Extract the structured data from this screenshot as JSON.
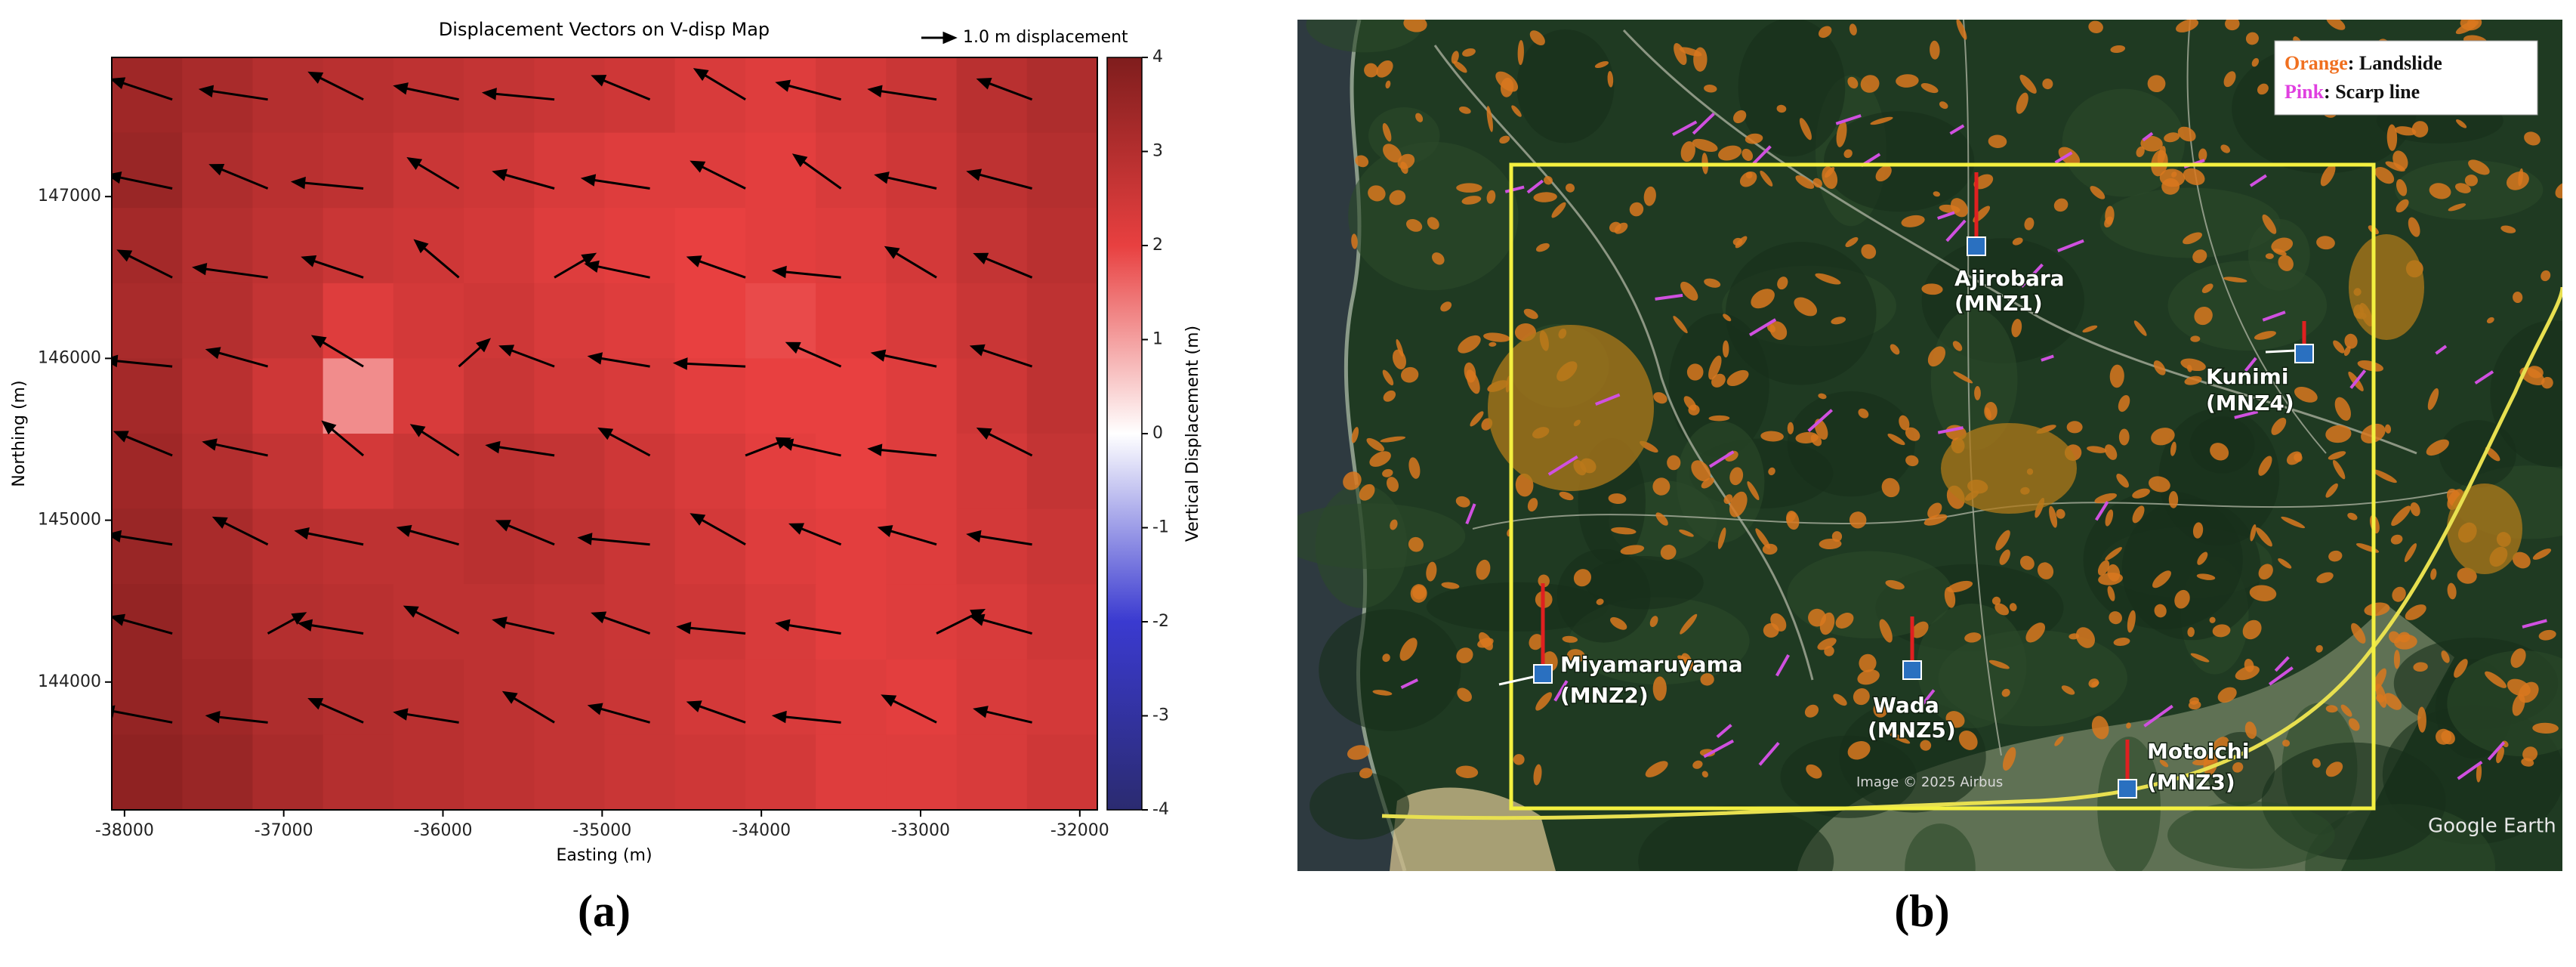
{
  "chart_data": {
    "type": "heatmap",
    "title": "Displacement Vectors on V-disp Map",
    "xlabel": "Easting (m)",
    "ylabel": "Northing (m)",
    "xlim": [
      -38080,
      -31890
    ],
    "ylim": [
      143210,
      147860
    ],
    "xticks": [
      -38000,
      -37000,
      -36000,
      -35000,
      -34000,
      -33000,
      -32000
    ],
    "yticks": [
      144000,
      145000,
      146000,
      147000
    ],
    "colormap": [
      "#2b2b70",
      "#3a3ad0",
      "#ffffff",
      "#e84040",
      "#7f1d1d"
    ],
    "colorbar": {
      "label": "Vertical Displacement (m)",
      "lim": [
        -4,
        4
      ],
      "ticks": [
        -4,
        -3,
        -2,
        -1,
        0,
        1,
        2,
        3,
        4
      ]
    },
    "z": [
      [
        3.4,
        3.2,
        3.0,
        2.9,
        2.8,
        2.7,
        2.6,
        2.5,
        2.3,
        2.2,
        2.4,
        2.6,
        2.9,
        3.1
      ],
      [
        3.5,
        3.1,
        2.9,
        2.8,
        2.6,
        2.5,
        2.3,
        2.2,
        2.2,
        2.1,
        2.3,
        2.5,
        2.8,
        3.0
      ],
      [
        3.3,
        3.0,
        2.8,
        2.6,
        2.5,
        2.4,
        2.2,
        2.1,
        2.0,
        2.1,
        2.2,
        2.4,
        2.7,
        2.9
      ],
      [
        3.2,
        3.0,
        2.7,
        2.2,
        2.4,
        2.5,
        2.3,
        2.2,
        2.0,
        1.9,
        2.1,
        2.3,
        2.6,
        2.8
      ],
      [
        3.3,
        2.9,
        2.5,
        1.2,
        2.3,
        2.6,
        2.4,
        2.3,
        2.1,
        2.0,
        2.0,
        2.2,
        2.5,
        2.8
      ],
      [
        3.4,
        3.0,
        2.7,
        2.4,
        2.6,
        2.8,
        2.7,
        2.5,
        2.3,
        2.1,
        2.0,
        2.2,
        2.4,
        2.7
      ],
      [
        3.5,
        3.2,
        2.9,
        2.8,
        2.8,
        2.9,
        2.8,
        2.6,
        2.4,
        2.2,
        2.1,
        2.2,
        2.4,
        2.6
      ],
      [
        3.6,
        3.3,
        3.0,
        2.9,
        2.8,
        2.8,
        2.7,
        2.6,
        2.5,
        2.3,
        2.1,
        2.2,
        2.3,
        2.5
      ],
      [
        3.6,
        3.4,
        3.1,
        3.0,
        2.9,
        2.8,
        2.7,
        2.6,
        2.4,
        2.3,
        2.2,
        2.1,
        2.3,
        2.4
      ],
      [
        3.7,
        3.5,
        3.2,
        3.0,
        2.9,
        2.8,
        2.7,
        2.6,
        2.5,
        2.4,
        2.2,
        2.2,
        2.3,
        2.5
      ]
    ],
    "quiver": {
      "key_label": "1.0 m displacement",
      "key_value": 1.0,
      "x": [
        -37700,
        -37100,
        -36500,
        -35900,
        -35300,
        -34700,
        -34100,
        -33500,
        -32900,
        -32300
      ],
      "y": [
        147600,
        147050,
        146500,
        145950,
        145400,
        144850,
        144300,
        143750
      ],
      "u": [
        [
          -1.8,
          -2.0,
          -1.6,
          -1.9,
          -2.1,
          -1.7,
          -1.5,
          -1.9,
          -2.0,
          -1.6
        ],
        [
          -1.9,
          -1.7,
          -2.1,
          -1.5,
          -1.8,
          -2.0,
          -1.6,
          -1.4,
          -1.8,
          -1.9
        ],
        [
          -1.6,
          -2.2,
          -1.8,
          -1.3,
          1.2,
          -1.9,
          -1.7,
          -2.0,
          -1.5,
          -1.7
        ],
        [
          -2.0,
          -1.8,
          -1.5,
          0.9,
          -1.6,
          -1.8,
          -2.1,
          -1.6,
          -1.9,
          -1.8
        ],
        [
          -1.7,
          -1.9,
          -1.2,
          -1.4,
          -2.0,
          -1.5,
          1.3,
          -1.8,
          -2.0,
          -1.6
        ],
        [
          -1.9,
          -1.6,
          -2.0,
          -1.8,
          -1.7,
          -2.1,
          -1.6,
          -1.5,
          -1.7,
          -1.9
        ],
        [
          -1.8,
          1.1,
          -1.9,
          -1.6,
          -1.8,
          -1.7,
          -2.0,
          -1.9,
          1.4,
          -1.8
        ],
        [
          -2.1,
          -1.8,
          -1.6,
          -1.9,
          -1.5,
          -1.8,
          -1.7,
          -2.0,
          -1.6,
          -1.7
        ]
      ],
      "v": [
        [
          0.6,
          0.3,
          0.8,
          0.4,
          0.2,
          0.7,
          0.9,
          0.5,
          0.3,
          0.6
        ],
        [
          0.4,
          0.7,
          0.2,
          0.9,
          0.5,
          0.3,
          0.8,
          1.0,
          0.4,
          0.5
        ],
        [
          0.8,
          0.3,
          0.6,
          1.1,
          0.7,
          0.4,
          0.6,
          0.2,
          0.9,
          0.7
        ],
        [
          0.2,
          0.5,
          0.9,
          0.8,
          0.6,
          0.3,
          0.1,
          0.7,
          0.4,
          0.6
        ],
        [
          0.7,
          0.4,
          1.0,
          0.9,
          0.3,
          0.8,
          0.5,
          0.4,
          0.2,
          0.8
        ],
        [
          0.3,
          0.8,
          0.4,
          0.5,
          0.7,
          0.2,
          0.9,
          0.6,
          0.5,
          0.3
        ],
        [
          0.5,
          0.6,
          0.3,
          0.8,
          0.4,
          0.6,
          0.2,
          0.3,
          0.7,
          0.5
        ],
        [
          0.4,
          0.2,
          0.7,
          0.3,
          0.9,
          0.5,
          0.6,
          0.2,
          0.8,
          0.4
        ]
      ]
    }
  },
  "panel_labels": [
    "(a)",
    "(b)"
  ],
  "map": {
    "legend": [
      {
        "key": "Orange",
        "text": ": Landslide",
        "color": "#f07020"
      },
      {
        "key": "Pink",
        "text": ": Scarp line",
        "color": "#e040e0"
      }
    ],
    "stations": [
      {
        "name": "Ajirobara",
        "code": "(MNZ1)"
      },
      {
        "name": "Miyamaruyama",
        "code": "(MNZ2)"
      },
      {
        "name": "Motoichi",
        "code": "(MNZ3)"
      },
      {
        "name": "Kunimi",
        "code": "(MNZ4)"
      },
      {
        "name": "Wada",
        "code": "(MNZ5)"
      }
    ],
    "imagery": "Image © 2025 Airbus",
    "attribution": "Google Earth"
  }
}
